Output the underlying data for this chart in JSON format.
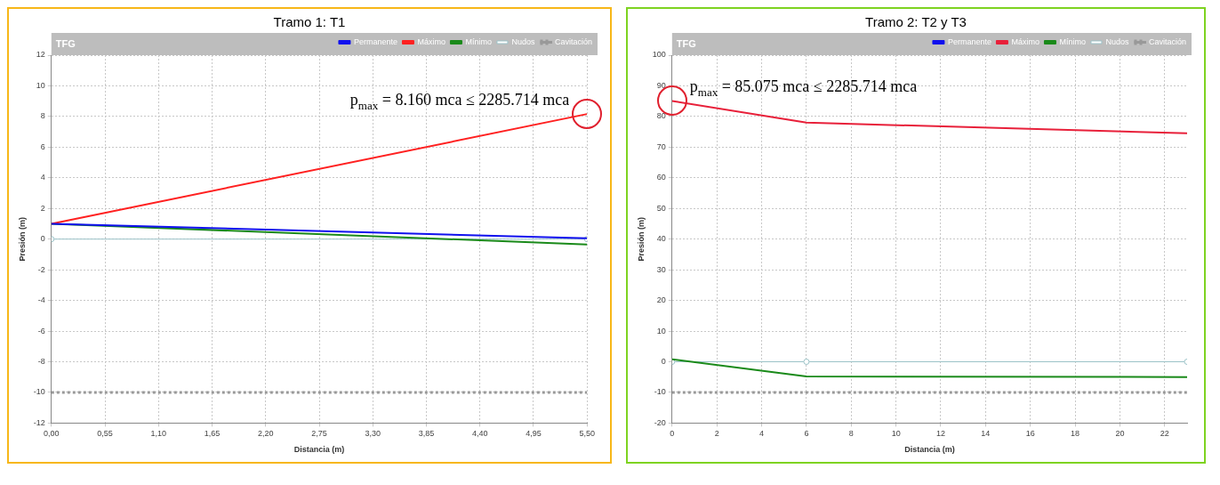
{
  "chart_data": [
    {
      "type": "line",
      "title": "Tramo 1: T1",
      "subtitle": "TFG",
      "xlabel": "Distancia (m)",
      "ylabel": "Presión (m)",
      "x": [
        0,
        5.5
      ],
      "xlim": [
        0,
        5.5
      ],
      "xticks": [
        {
          "value": 0,
          "label": "0,00"
        },
        {
          "value": 0.55,
          "label": "0,55"
        },
        {
          "value": 1.1,
          "label": "1,10"
        },
        {
          "value": 1.65,
          "label": "1,65"
        },
        {
          "value": 2.2,
          "label": "2,20"
        },
        {
          "value": 2.75,
          "label": "2,75"
        },
        {
          "value": 3.3,
          "label": "3,30"
        },
        {
          "value": 3.85,
          "label": "3,85"
        },
        {
          "value": 4.4,
          "label": "4,40"
        },
        {
          "value": 4.95,
          "label": "4,95"
        },
        {
          "value": 5.5,
          "label": "5,50"
        }
      ],
      "ylim": [
        -12,
        12
      ],
      "yticks": [
        -12,
        -10,
        -8,
        -6,
        -4,
        -2,
        0,
        2,
        4,
        6,
        8,
        10,
        12
      ],
      "grid": true,
      "legend": "top right",
      "annotations": [
        {
          "text": "p$_{max}$ = 8.160 mca ≤ 2285.714 mca",
          "x": 5.5,
          "y": 8.16
        }
      ],
      "series": [
        {
          "name": "Permanente",
          "color": "#1010ee",
          "values": [
            1.0,
            0.05
          ]
        },
        {
          "name": "Máximo",
          "color": "#ff2020",
          "values": [
            1.0,
            8.16
          ]
        },
        {
          "name": "Mínimo",
          "color": "#1a8a1a",
          "values": [
            1.0,
            -0.35
          ]
        },
        {
          "name": "Nudos",
          "color": "#9cc3c8",
          "marker": "circle",
          "values": [
            0,
            0
          ]
        },
        {
          "name": "Cavitación",
          "color": "#999999",
          "line_style": "dotted",
          "values": [
            -10,
            -10
          ]
        }
      ]
    },
    {
      "type": "line",
      "title": "Tramo 2: T2 y T3",
      "subtitle": "TFG",
      "xlabel": "Distancia (m)",
      "ylabel": "Presión (m)",
      "x": [
        0,
        6,
        23
      ],
      "xlim": [
        0,
        23
      ],
      "xticks": [
        0,
        2,
        4,
        6,
        8,
        10,
        12,
        14,
        16,
        18,
        20,
        22
      ],
      "ylim": [
        -20,
        100
      ],
      "yticks": [
        -20,
        -10,
        0,
        10,
        20,
        30,
        40,
        50,
        60,
        70,
        80,
        90,
        100
      ],
      "grid": true,
      "legend": "top right",
      "annotations": [
        {
          "text": "p$_{max}$ = 85.075 mca ≤ 2285.714 mca",
          "x": 0,
          "y": 85.075
        }
      ],
      "series": [
        {
          "name": "Permanente",
          "color": "#1010ee",
          "values": [
            null,
            null,
            null
          ]
        },
        {
          "name": "Máximo",
          "color": "#e8203a",
          "values": [
            85.075,
            78,
            74.5
          ]
        },
        {
          "name": "Mínimo",
          "color": "#1a8a1a",
          "values": [
            0.8,
            -4.8,
            -5
          ]
        },
        {
          "name": "Nudos",
          "color": "#9cc3c8",
          "marker": "circle",
          "values": [
            0,
            0,
            0
          ]
        },
        {
          "name": "Cavitación",
          "color": "#999999",
          "line_style": "dotted",
          "values": [
            -10,
            -10,
            -10
          ]
        }
      ]
    }
  ]
}
